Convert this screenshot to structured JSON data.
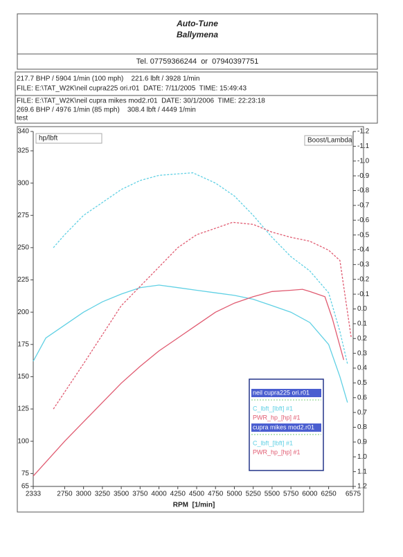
{
  "header": {
    "title": "Auto-Tune",
    "subtitle": "Ballymena",
    "phone": "Tel. 07759366244  or  07940397751",
    "info": [
      "217.7 BHP / 5904 1/min (100 mph)    221.6 lbft / 3928 1/min",
      "FILE: E:\\TAT_W2K\\neil cupra225 ori.r01  DATE: 7/11/2005  TIME: 15:49:43",
      "FILE: E:\\TAT_W2K\\neil cupra mikes mod2.r01  DATE: 30/1/2006  TIME: 22:23:18",
      "269.6 BHP / 4976 1/min (85 mph)    308.4 lbft / 4449 1/min",
      "test"
    ]
  },
  "chart_data": {
    "type": "line",
    "y_label": "hp/lbft",
    "y2_label": "Boost/Lambda",
    "x_label": "RPM  [1/min]",
    "xlim": [
      2333,
      6575
    ],
    "xticks": [
      2333,
      2750,
      3000,
      3250,
      3500,
      3750,
      4000,
      4250,
      4500,
      4750,
      5000,
      5250,
      5500,
      5750,
      6000,
      6250,
      6575
    ],
    "ylim": [
      65,
      340
    ],
    "yticks": [
      65,
      75,
      100,
      125,
      150,
      175,
      200,
      225,
      250,
      275,
      300,
      325,
      340
    ],
    "y2lim": [
      1.2,
      -1.2
    ],
    "y2ticks": [
      -1.2,
      -1.1,
      {
        "value": -1,
        "label": "-1.0"
      },
      -0.9,
      -0.8,
      -0.7,
      -0.6,
      -0.5,
      -0.4,
      -0.3,
      -0.2,
      -0.1,
      {
        "value": 0,
        "label": "0.0"
      },
      0.1,
      0.2,
      0.3,
      0.4,
      0.5,
      0.6,
      0.7,
      0.8,
      0.9,
      {
        "value": 1,
        "label": "1.0"
      },
      1.1,
      1.2
    ],
    "legend_titles": [
      "neil cupra225 ori.r01",
      "cupra mikes mod2.r01"
    ],
    "series": [
      {
        "name": "C_lbft_[lbft] #1",
        "color": "#5fd0e4",
        "dash": false,
        "x": [
          2333,
          2500,
          2750,
          3000,
          3250,
          3500,
          3750,
          4000,
          4250,
          4500,
          4750,
          5000,
          5250,
          5500,
          5750,
          6000,
          6250,
          6400,
          6500
        ],
        "values": [
          162,
          180,
          190,
          200,
          208,
          214,
          219,
          221,
          219,
          217,
          215,
          213,
          210,
          205,
          200,
          192,
          175,
          150,
          130
        ]
      },
      {
        "name": "PWR_hp_[hp] #1",
        "color": "#e05a70",
        "dash": false,
        "x": [
          2333,
          2750,
          3000,
          3250,
          3500,
          3750,
          4000,
          4250,
          4500,
          4750,
          5000,
          5250,
          5500,
          5750,
          5904,
          6000,
          6200,
          6300,
          6450
        ],
        "values": [
          73,
          100,
          115,
          130,
          145,
          158,
          170,
          180,
          190,
          200,
          207,
          212,
          216,
          217,
          217.7,
          216,
          212,
          195,
          163
        ]
      },
      {
        "name": "C_lbft_[lbft] #1",
        "color": "#5fd0e4",
        "dash": true,
        "x": [
          2600,
          2750,
          3000,
          3250,
          3500,
          3750,
          4000,
          4449,
          4750,
          5000,
          5250,
          5500,
          5750,
          6000,
          6250,
          6400,
          6500
        ],
        "values": [
          250,
          260,
          275,
          285,
          295,
          302,
          306,
          308,
          300,
          290,
          275,
          258,
          243,
          232,
          215,
          185,
          160
        ]
      },
      {
        "name": "PWR_hp_[hp] #1",
        "color": "#e05a70",
        "dash": true,
        "x": [
          2600,
          3000,
          3500,
          4000,
          4250,
          4500,
          4750,
          4976,
          5250,
          5500,
          5750,
          6000,
          6250,
          6400,
          6550
        ],
        "values": [
          125,
          160,
          205,
          235,
          250,
          260,
          265,
          269.6,
          268,
          262,
          258,
          255,
          248,
          240,
          180
        ]
      }
    ]
  }
}
